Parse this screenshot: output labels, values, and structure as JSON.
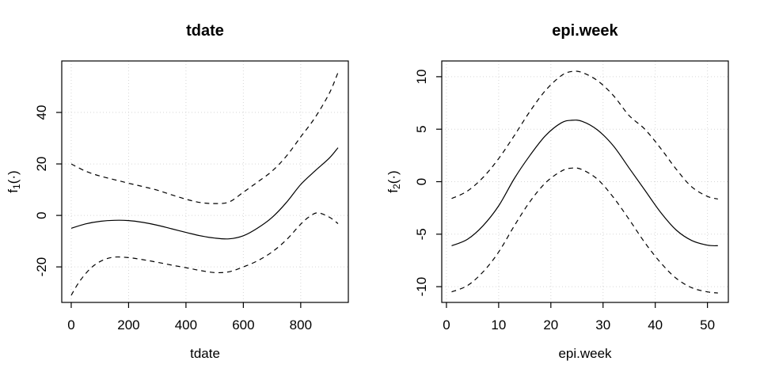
{
  "figure": {
    "background": "#ffffff",
    "text_color": "#000000",
    "line_color": "#000000",
    "grid_color": "#d6d6d6"
  },
  "chart_data": [
    {
      "type": "line",
      "title": "tdate",
      "xlabel": "tdate",
      "ylabel": {
        "base": "f",
        "sub": "1",
        "suffix": "(·)"
      },
      "xlim": [
        -33,
        966
      ],
      "ylim": [
        -33.8,
        60
      ],
      "xticks": [
        0,
        200,
        400,
        600,
        800
      ],
      "yticks": [
        -20,
        0,
        20,
        40
      ],
      "grid": true,
      "legend": "none",
      "series": [
        {
          "name": "fit",
          "style": "solid",
          "x": [
            0,
            50,
            100,
            150,
            200,
            250,
            300,
            350,
            400,
            450,
            500,
            550,
            600,
            650,
            700,
            750,
            800,
            850,
            900,
            930
          ],
          "y": [
            -5.0,
            -3.3,
            -2.3,
            -1.9,
            -2.0,
            -2.7,
            -3.8,
            -5.2,
            -6.6,
            -7.9,
            -8.8,
            -9.1,
            -7.9,
            -4.9,
            -0.8,
            5.0,
            12.0,
            17.3,
            22.3,
            26.3
          ]
        },
        {
          "name": "upper-ci",
          "style": "dashed",
          "x": [
            0,
            50,
            100,
            150,
            200,
            250,
            300,
            350,
            400,
            450,
            500,
            550,
            600,
            650,
            700,
            750,
            800,
            850,
            900,
            930
          ],
          "y": [
            20.0,
            17.2,
            15.3,
            13.9,
            12.5,
            11.2,
            9.8,
            8.0,
            6.3,
            5.0,
            4.6,
            5.2,
            9.0,
            13.0,
            17.2,
            23.0,
            30.5,
            38.0,
            47.5,
            55.5
          ]
        },
        {
          "name": "lower-ci",
          "style": "dashed",
          "x": [
            0,
            30,
            70,
            110,
            150,
            200,
            250,
            300,
            350,
            400,
            450,
            500,
            550,
            600,
            650,
            700,
            750,
            800,
            830,
            860,
            900,
            930
          ],
          "y": [
            -31.0,
            -25.5,
            -20.3,
            -17.4,
            -16.2,
            -16.4,
            -17.2,
            -18.2,
            -19.3,
            -20.3,
            -21.4,
            -22.2,
            -21.9,
            -20.0,
            -17.6,
            -14.2,
            -9.5,
            -3.4,
            -0.5,
            1.0,
            -0.7,
            -3.2
          ]
        }
      ]
    },
    {
      "type": "line",
      "title": "epi.week",
      "xlabel": "epi.week",
      "ylabel": {
        "base": "f",
        "sub": "2",
        "suffix": "(·)"
      },
      "xlim": [
        -0.9,
        54
      ],
      "ylim": [
        -11.5,
        11.5
      ],
      "xticks": [
        0,
        10,
        20,
        30,
        40,
        50
      ],
      "yticks": [
        -10,
        -5,
        0,
        5,
        10
      ],
      "grid": true,
      "legend": "none",
      "series": [
        {
          "name": "fit",
          "style": "solid",
          "x": [
            1,
            4,
            7,
            10,
            13,
            16,
            19,
            22,
            24,
            26,
            29,
            32,
            35,
            38,
            41,
            44,
            47,
            50,
            52
          ],
          "y": [
            -6.1,
            -5.5,
            -4.2,
            -2.3,
            0.3,
            2.5,
            4.4,
            5.6,
            5.85,
            5.75,
            4.9,
            3.4,
            1.3,
            -0.8,
            -2.9,
            -4.6,
            -5.6,
            -6.05,
            -6.1
          ]
        },
        {
          "name": "upper-ci",
          "style": "dashed",
          "x": [
            1,
            4,
            7,
            10,
            13,
            16,
            19,
            22,
            24,
            26,
            29,
            32,
            35,
            38,
            41,
            44,
            47,
            50,
            52
          ],
          "y": [
            -1.6,
            -0.9,
            0.4,
            2.2,
            4.4,
            6.7,
            8.7,
            10.1,
            10.5,
            10.4,
            9.6,
            8.2,
            6.3,
            5.0,
            3.2,
            1.2,
            -0.5,
            -1.4,
            -1.65
          ]
        },
        {
          "name": "lower-ci",
          "style": "dashed",
          "x": [
            1,
            4,
            7,
            10,
            13,
            16,
            19,
            22,
            24,
            26,
            29,
            32,
            35,
            38,
            41,
            44,
            47,
            50,
            52
          ],
          "y": [
            -10.5,
            -9.9,
            -8.6,
            -6.7,
            -4.2,
            -1.9,
            -0.1,
            1.0,
            1.3,
            1.15,
            0.2,
            -1.5,
            -3.6,
            -5.8,
            -7.7,
            -9.2,
            -10.1,
            -10.5,
            -10.6
          ]
        }
      ]
    }
  ]
}
